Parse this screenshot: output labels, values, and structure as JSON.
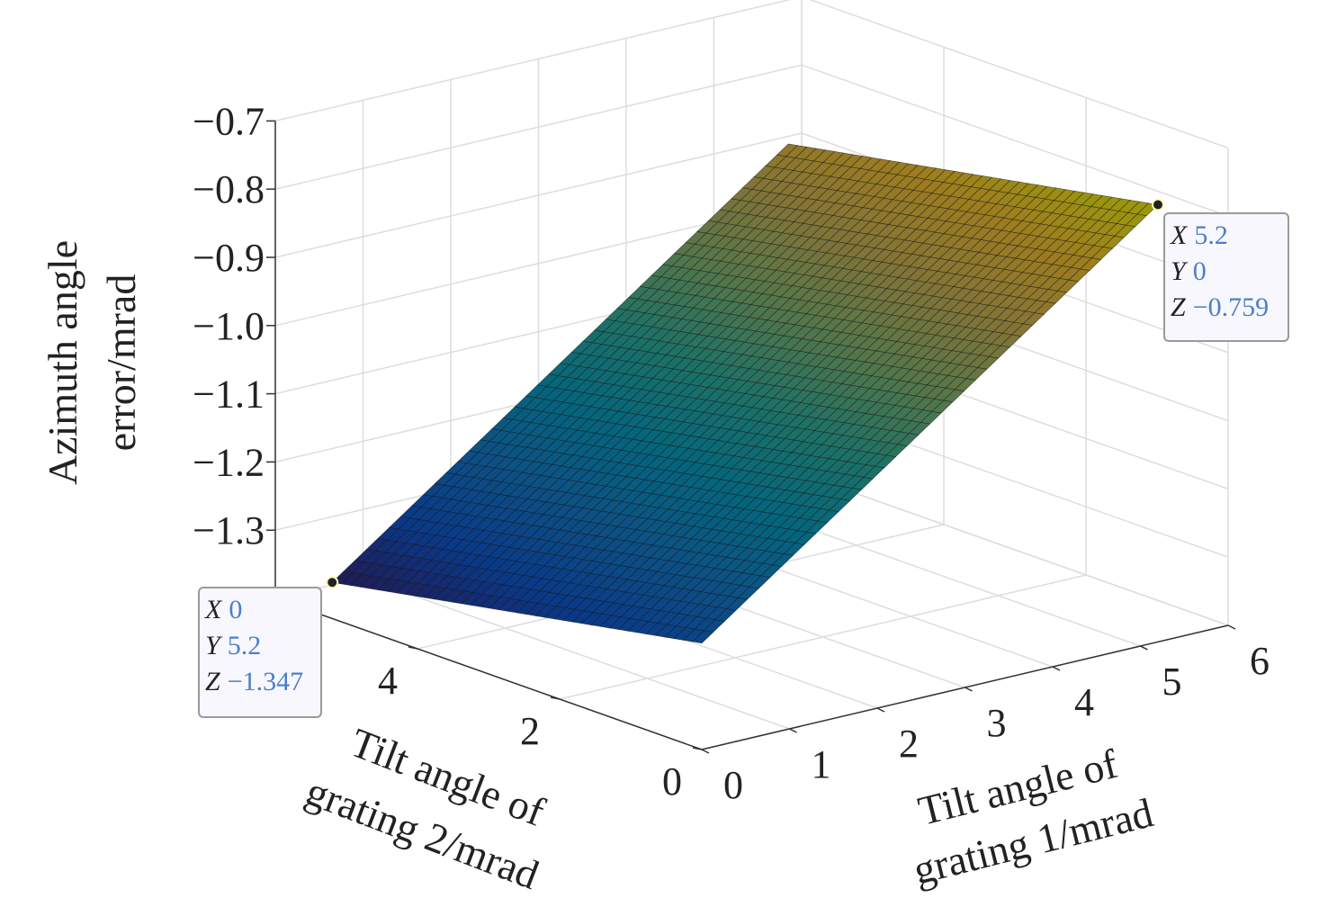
{
  "chart_data": {
    "type": "surface",
    "title": "",
    "xlabel": [
      "Tilt angle of",
      "grating 1/mrad"
    ],
    "ylabel": [
      "Tilt angle of",
      "grating 2/mrad"
    ],
    "zlabel": [
      "Azimuth angle",
      "error/mrad"
    ],
    "xlim": [
      0,
      6
    ],
    "ylim": [
      0,
      6
    ],
    "zlim": [
      -1.4,
      -0.7
    ],
    "x_ticks": [
      "0",
      "1",
      "2",
      "3",
      "4",
      "5",
      "6"
    ],
    "y_ticks": [
      "0",
      "2",
      "4"
    ],
    "z_ticks": [
      "−0.7",
      "−0.8",
      "−0.9",
      "−1.0",
      "−1.1",
      "−1.2",
      "−1.3"
    ],
    "grid": true,
    "colormap": "parula",
    "surface_extent": {
      "x": [
        0,
        5.2
      ],
      "y": [
        0,
        5.2
      ]
    },
    "corner_values": [
      {
        "x": 0,
        "y": 0,
        "z": -1.244
      },
      {
        "x": 5.2,
        "y": 0,
        "z": -0.759
      },
      {
        "x": 0,
        "y": 5.2,
        "z": -1.347
      },
      {
        "x": 5.2,
        "y": 5.2,
        "z": -0.862
      }
    ],
    "datatips": [
      {
        "x_label": "X",
        "x": "0",
        "y_label": "Y",
        "y": "5.2",
        "z_label": "Z",
        "z": "−1.347"
      },
      {
        "x_label": "X",
        "x": "5.2",
        "y_label": "Y",
        "y": "0",
        "z_label": "Z",
        "z": "−0.759"
      }
    ],
    "colors": {
      "datatip_value": "#4a7fcb",
      "grid": "#dddddd",
      "axis": "#333333"
    }
  }
}
